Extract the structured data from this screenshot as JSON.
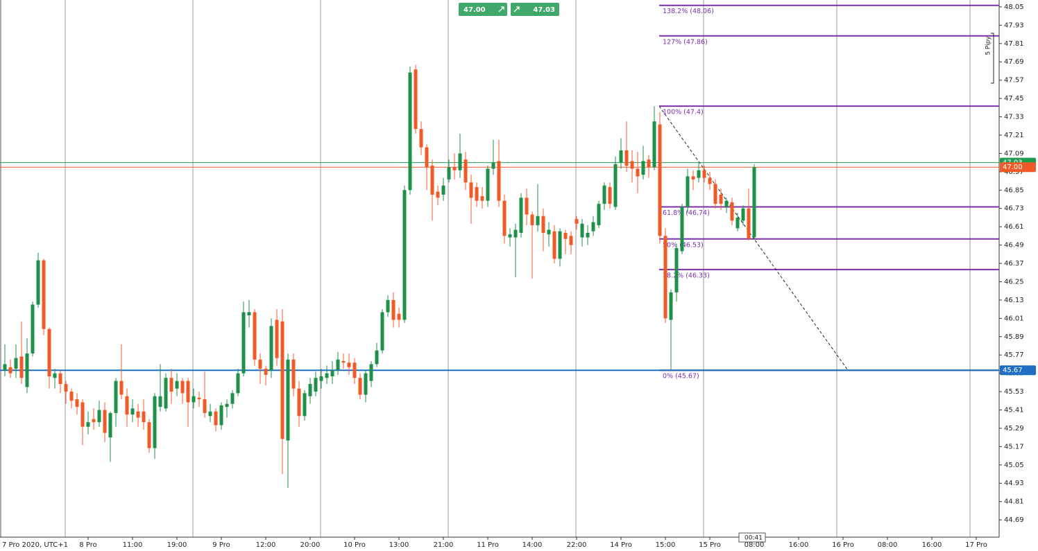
{
  "chart_data": {
    "type": "candlestick",
    "up_color": "#1f8f4a",
    "down_color": "#f05a28",
    "ylim": [
      44.577,
      48.095
    ],
    "yticks": [
      48.05,
      47.93,
      47.81,
      47.69,
      47.57,
      47.45,
      47.33,
      47.21,
      47.09,
      46.97,
      46.85,
      46.73,
      46.61,
      46.49,
      46.37,
      46.25,
      46.13,
      46.01,
      45.89,
      45.77,
      45.65,
      45.53,
      45.41,
      45.29,
      45.17,
      45.05,
      44.93,
      44.81,
      44.69
    ],
    "x_labels": [
      "7 Pro 2020, UTC+1",
      "8 Pro",
      "11:00",
      "19:00",
      "9 Pro",
      "12:00",
      "20:00",
      "10 Pro",
      "13:00",
      "21:00",
      "11 Pro",
      "14:00",
      "22:00",
      "14 Pro",
      "15:00",
      "15 Pro",
      "08:00",
      "16:00",
      "16 Pro",
      "08:00",
      "16:00",
      "17 Pro"
    ],
    "candles": [
      [
        45.67,
        45.84,
        45.63,
        45.71
      ],
      [
        45.69,
        45.74,
        45.62,
        45.65
      ],
      [
        45.68,
        45.84,
        45.62,
        45.75
      ],
      [
        45.76,
        45.99,
        45.58,
        45.62
      ],
      [
        45.56,
        45.88,
        45.52,
        45.78
      ],
      [
        45.78,
        46.12,
        45.76,
        46.1
      ],
      [
        46.1,
        46.44,
        46.08,
        46.39
      ],
      [
        46.39,
        46.4,
        45.9,
        45.94
      ],
      [
        45.94,
        45.95,
        45.55,
        45.63
      ],
      [
        45.62,
        45.68,
        45.55,
        45.65
      ],
      [
        45.65,
        45.67,
        45.52,
        45.58
      ],
      [
        45.58,
        45.6,
        45.45,
        45.53
      ],
      [
        45.53,
        45.55,
        45.42,
        45.47
      ],
      [
        45.48,
        45.52,
        45.38,
        45.43
      ],
      [
        45.46,
        45.48,
        45.18,
        45.3
      ],
      [
        45.3,
        45.4,
        45.25,
        45.33
      ],
      [
        45.35,
        45.42,
        45.28,
        45.33
      ],
      [
        45.33,
        45.47,
        45.3,
        45.41
      ],
      [
        45.41,
        45.46,
        45.2,
        45.26
      ],
      [
        45.23,
        45.4,
        45.07,
        45.39
      ],
      [
        45.39,
        45.62,
        45.3,
        45.6
      ],
      [
        45.6,
        45.84,
        45.48,
        45.51
      ],
      [
        45.5,
        45.55,
        45.3,
        45.38
      ],
      [
        45.38,
        45.48,
        45.33,
        45.42
      ],
      [
        45.4,
        45.45,
        45.3,
        45.36
      ],
      [
        45.4,
        45.48,
        45.28,
        45.33
      ],
      [
        45.33,
        45.35,
        45.13,
        45.16
      ],
      [
        45.16,
        45.52,
        45.09,
        45.5
      ],
      [
        45.43,
        45.71,
        45.4,
        45.5
      ],
      [
        45.42,
        45.65,
        45.4,
        45.62
      ],
      [
        45.62,
        45.68,
        45.45,
        45.53
      ],
      [
        45.55,
        45.65,
        45.5,
        45.6
      ],
      [
        45.6,
        45.62,
        45.45,
        45.52
      ],
      [
        45.6,
        45.62,
        45.3,
        45.46
      ],
      [
        45.46,
        45.55,
        45.42,
        45.5
      ],
      [
        45.49,
        45.53,
        45.43,
        45.48
      ],
      [
        45.48,
        45.66,
        45.36,
        45.39
      ],
      [
        45.37,
        45.45,
        45.33,
        45.4
      ],
      [
        45.4,
        45.42,
        45.27,
        45.31
      ],
      [
        45.31,
        45.46,
        45.28,
        45.44
      ],
      [
        45.43,
        45.48,
        45.36,
        45.45
      ],
      [
        45.45,
        45.54,
        45.42,
        45.52
      ],
      [
        45.52,
        45.68,
        45.5,
        45.65
      ],
      [
        45.65,
        46.12,
        45.63,
        46.05
      ],
      [
        46.03,
        46.13,
        45.95,
        46.05
      ],
      [
        46.05,
        46.07,
        45.7,
        45.74
      ],
      [
        45.74,
        45.78,
        45.58,
        45.68
      ],
      [
        45.68,
        45.7,
        45.57,
        45.64
      ],
      [
        45.67,
        46.01,
        45.62,
        45.96
      ],
      [
        46.0,
        46.07,
        45.7,
        45.75
      ],
      [
        45.99,
        46.07,
        44.99,
        45.22
      ],
      [
        45.21,
        45.78,
        44.9,
        45.74
      ],
      [
        45.74,
        45.78,
        45.5,
        45.55
      ],
      [
        45.55,
        45.6,
        45.3,
        45.37
      ],
      [
        45.37,
        45.54,
        45.34,
        45.52
      ],
      [
        45.5,
        45.62,
        45.45,
        45.58
      ],
      [
        45.53,
        45.66,
        45.5,
        45.62
      ],
      [
        45.6,
        45.68,
        45.55,
        45.63
      ],
      [
        45.62,
        45.7,
        45.58,
        45.65
      ],
      [
        45.63,
        45.73,
        45.58,
        45.67
      ],
      [
        45.67,
        45.79,
        45.64,
        45.74
      ],
      [
        45.73,
        45.78,
        45.68,
        45.72
      ],
      [
        45.72,
        45.78,
        45.64,
        45.69
      ],
      [
        45.72,
        45.75,
        45.58,
        45.62
      ],
      [
        45.62,
        45.65,
        45.48,
        45.51
      ],
      [
        45.51,
        45.67,
        45.46,
        45.65
      ],
      [
        45.6,
        45.73,
        45.56,
        45.71
      ],
      [
        45.71,
        45.85,
        45.69,
        45.8
      ],
      [
        45.8,
        46.07,
        45.78,
        46.05
      ],
      [
        46.05,
        46.16,
        46.02,
        46.13
      ],
      [
        46.13,
        46.18,
        45.95,
        46.0
      ],
      [
        46.04,
        46.08,
        45.95,
        46.0
      ],
      [
        46.0,
        46.88,
        45.98,
        46.85
      ],
      [
        46.85,
        47.66,
        46.82,
        47.62
      ],
      [
        47.64,
        47.67,
        47.22,
        47.25
      ],
      [
        47.25,
        47.3,
        47.08,
        47.13
      ],
      [
        47.13,
        47.15,
        46.85,
        47.0
      ],
      [
        47.01,
        47.05,
        46.65,
        46.82
      ],
      [
        46.84,
        46.88,
        46.75,
        46.8
      ],
      [
        46.82,
        46.93,
        46.78,
        46.88
      ],
      [
        46.92,
        47.05,
        46.9,
        47.0
      ],
      [
        47.0,
        47.09,
        46.92,
        46.98
      ],
      [
        46.98,
        47.22,
        46.93,
        47.09
      ],
      [
        47.05,
        47.1,
        46.85,
        46.9
      ],
      [
        46.9,
        46.95,
        46.63,
        46.8
      ],
      [
        46.87,
        46.9,
        46.74,
        46.78
      ],
      [
        46.81,
        46.87,
        46.73,
        46.78
      ],
      [
        46.78,
        47.01,
        46.74,
        46.99
      ],
      [
        46.99,
        47.18,
        46.95,
        47.03
      ],
      [
        47.04,
        47.18,
        46.74,
        46.78
      ],
      [
        46.78,
        46.82,
        46.5,
        46.55
      ],
      [
        46.54,
        46.6,
        46.48,
        46.56
      ],
      [
        46.54,
        46.63,
        46.28,
        46.59
      ],
      [
        46.57,
        46.83,
        46.54,
        46.8
      ],
      [
        46.8,
        46.86,
        46.62,
        46.69
      ],
      [
        46.69,
        46.71,
        46.27,
        46.62
      ],
      [
        46.62,
        46.89,
        46.58,
        46.68
      ],
      [
        46.68,
        46.73,
        46.45,
        46.57
      ],
      [
        46.56,
        46.64,
        46.48,
        46.59
      ],
      [
        46.58,
        46.62,
        46.37,
        46.4
      ],
      [
        46.4,
        46.6,
        46.35,
        46.58
      ],
      [
        46.57,
        46.59,
        46.43,
        46.53
      ],
      [
        46.55,
        46.58,
        46.43,
        46.49
      ],
      [
        46.66,
        46.68,
        46.59,
        46.63
      ],
      [
        46.54,
        46.66,
        46.48,
        46.63
      ],
      [
        46.54,
        46.62,
        46.49,
        46.57
      ],
      [
        46.58,
        46.68,
        46.55,
        46.64
      ],
      [
        46.62,
        46.78,
        46.6,
        46.76
      ],
      [
        46.76,
        46.9,
        46.72,
        46.88
      ],
      [
        46.87,
        46.9,
        46.73,
        46.76
      ],
      [
        46.74,
        47.07,
        46.72,
        47.02
      ],
      [
        47.03,
        47.19,
        46.99,
        47.11
      ],
      [
        47.11,
        47.3,
        46.97,
        47.01
      ],
      [
        47.04,
        47.11,
        46.9,
        46.99
      ],
      [
        46.99,
        47.1,
        46.83,
        46.94
      ],
      [
        46.95,
        47.14,
        46.92,
        47.04
      ],
      [
        47.05,
        47.08,
        46.93,
        47.0
      ],
      [
        47.0,
        47.4,
        46.98,
        47.3
      ],
      [
        47.28,
        47.36,
        46.5,
        46.55
      ],
      [
        46.55,
        46.6,
        45.98,
        46.01
      ],
      [
        46.0,
        46.2,
        45.67,
        46.18
      ],
      [
        46.18,
        46.5,
        46.12,
        46.47
      ],
      [
        46.45,
        46.76,
        46.43,
        46.74
      ],
      [
        46.74,
        46.99,
        46.7,
        46.94
      ],
      [
        46.94,
        46.98,
        46.85,
        46.92
      ],
      [
        46.93,
        47.03,
        46.9,
        46.98
      ],
      [
        46.98,
        47.01,
        46.9,
        46.93
      ],
      [
        46.93,
        46.97,
        46.85,
        46.89
      ],
      [
        46.89,
        46.92,
        46.73,
        46.76
      ],
      [
        46.82,
        46.86,
        46.72,
        46.76
      ],
      [
        46.74,
        46.8,
        46.7,
        46.78
      ],
      [
        46.77,
        46.8,
        46.62,
        46.65
      ],
      [
        46.6,
        46.7,
        46.58,
        46.67
      ],
      [
        46.65,
        46.75,
        46.62,
        46.73
      ],
      [
        46.73,
        46.86,
        46.52,
        46.53
      ],
      [
        46.54,
        47.02,
        46.53,
        47.0
      ]
    ],
    "price_lines": [
      {
        "value": 45.67,
        "color": "#1e6fc2"
      },
      {
        "value": 47.03,
        "color": "#1f9a4f"
      },
      {
        "value": 47,
        "label": "47.00",
        "color": "#f05a28"
      }
    ],
    "fibonacci": {
      "color": "#7a2fa8",
      "levels": [
        {
          "value": 48.06,
          "label": "138.2% (48.06)"
        },
        {
          "value": 47.86,
          "label": "127% (47.86)"
        },
        {
          "value": 47.4,
          "label": "100% (47.4)"
        },
        {
          "value": 46.74,
          "label": "61.8% (46.74)"
        },
        {
          "value": 46.53,
          "label": "50% (46.53)"
        },
        {
          "value": 46.33,
          "label": "38.2% (46.33)"
        },
        {
          "value": 45.67,
          "label": "0% (45.67)"
        }
      ]
    },
    "annotation": "5 Pipy",
    "countdown": "00:41",
    "sell_price": "47.00",
    "buy_price": "47.03"
  }
}
